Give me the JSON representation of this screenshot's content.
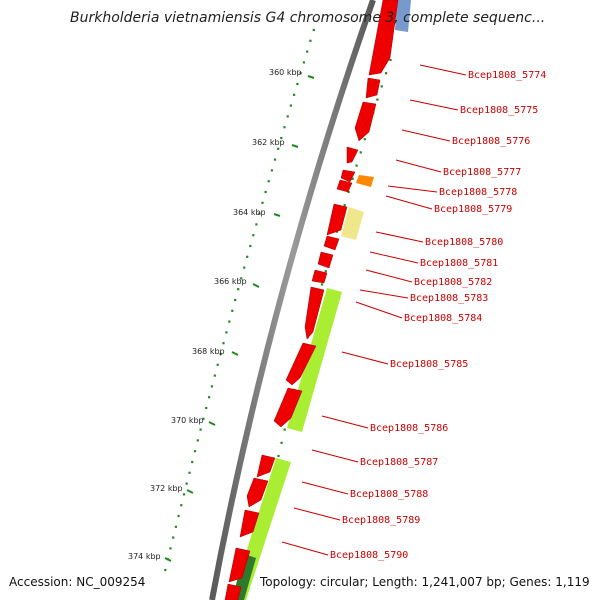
{
  "title": "Burkholderia vietnamiensis G4 chromosome 3, complete sequenc...",
  "footer": {
    "accession": "Accession: NC_009254",
    "summary": "Topology: circular; Length: 1,241,007 bp; Genes: 1,119"
  },
  "ruler": {
    "ticks": [
      "360 kbp",
      "362 kbp",
      "364 kbp",
      "366 kbp",
      "368 kbp",
      "370 kbp",
      "372 kbp",
      "374 kbp"
    ]
  },
  "gene_labels": [
    "Bcep1808_5774",
    "Bcep1808_5775",
    "Bcep1808_5776",
    "Bcep1808_5777",
    "Bcep1808_5778",
    "Bcep1808_5779",
    "Bcep1808_5780",
    "Bcep1808_5781",
    "Bcep1808_5782",
    "Bcep1808_5783",
    "Bcep1808_5784",
    "Bcep1808_5785",
    "Bcep1808_5786",
    "Bcep1808_5787",
    "Bcep1808_5788",
    "Bcep1808_5789",
    "Bcep1808_5790"
  ],
  "colors": {
    "gene_red": "#ee0000",
    "gene_red_dark": "#aa0000",
    "cog_green": "#aaee33",
    "cog_dark_green": "#2d7a2d",
    "cog_yellow": "#f0e68c",
    "cog_orange": "#ff8800",
    "cog_blue": "#7799cc",
    "backbone": "#888888",
    "tick_green": "#228822",
    "label_red": "#cc0000"
  }
}
